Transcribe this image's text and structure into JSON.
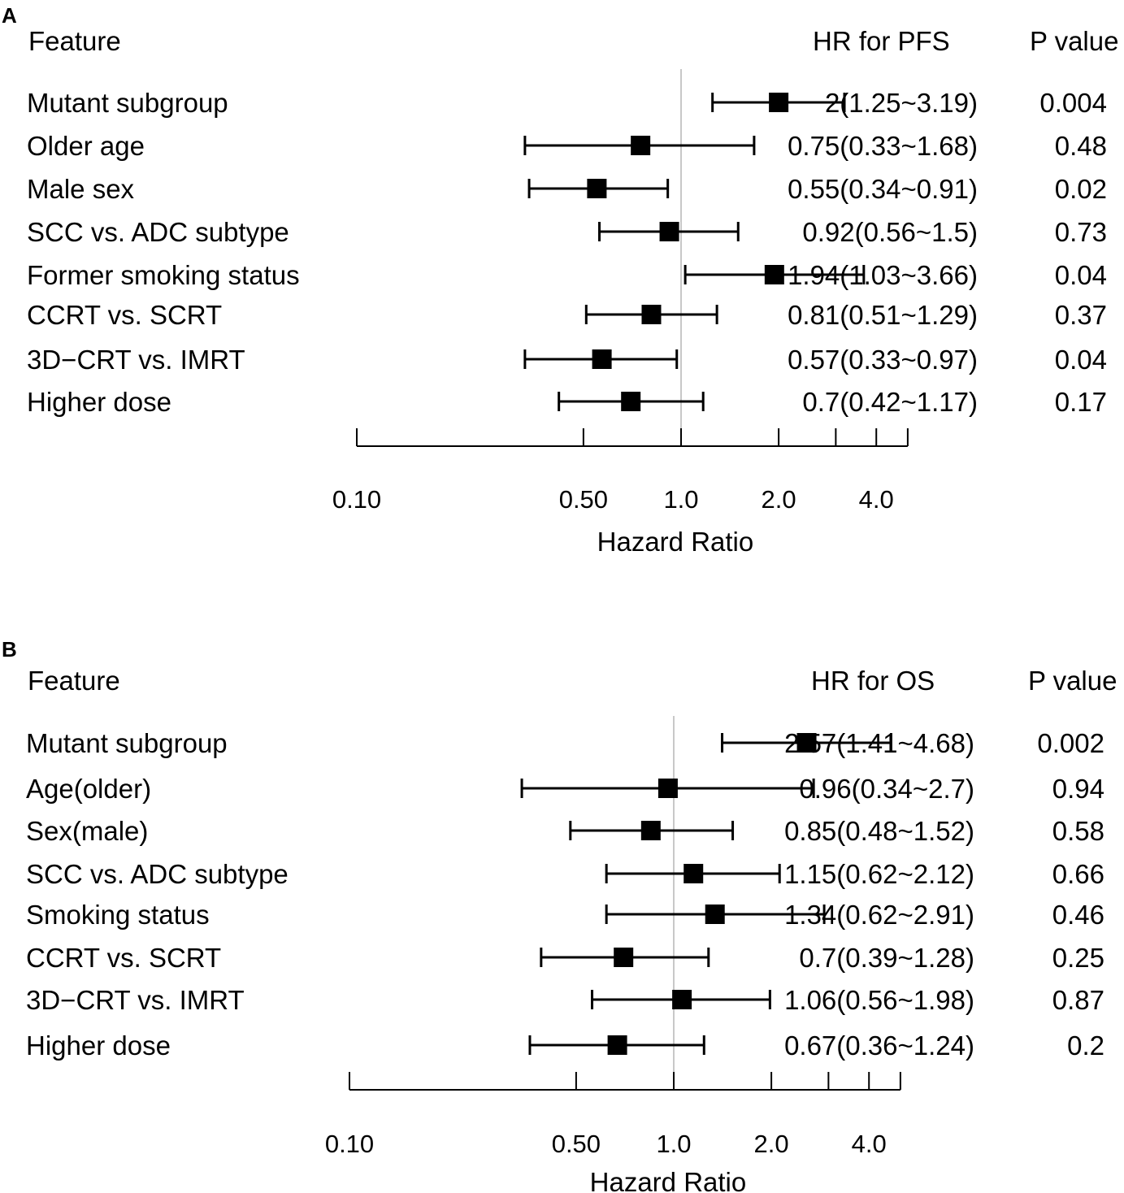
{
  "chart_data": [
    {
      "type": "forest",
      "panel": "A",
      "headers": {
        "feature": "Feature",
        "hr": "HR for PFS",
        "p": "P value"
      },
      "xlabel": "Hazard Ratio",
      "scale": "log",
      "reference": 1.0,
      "xticks": [
        0.1,
        0.5,
        1.0,
        2.0,
        3.0,
        4.0,
        5.0
      ],
      "tick_labels": [
        "0.10",
        "0.50",
        "1.0",
        "2.0",
        "4.0"
      ],
      "rows": [
        {
          "feature": "Mutant subgroup",
          "hr": 2.0,
          "lo": 1.25,
          "hi": 3.19,
          "hr_text": "2(1.25~3.19)",
          "p": "0.004"
        },
        {
          "feature": "Older age",
          "hr": 0.75,
          "lo": 0.33,
          "hi": 1.68,
          "hr_text": "0.75(0.33~1.68)",
          "p": "0.48"
        },
        {
          "feature": "Male sex",
          "hr": 0.55,
          "lo": 0.34,
          "hi": 0.91,
          "hr_text": "0.55(0.34~0.91)",
          "p": "0.02"
        },
        {
          "feature": "SCC vs. ADC subtype",
          "hr": 0.92,
          "lo": 0.56,
          "hi": 1.5,
          "hr_text": "0.92(0.56~1.5)",
          "p": "0.73"
        },
        {
          "feature": "Former smoking status",
          "hr": 1.94,
          "lo": 1.03,
          "hi": 3.66,
          "hr_text": "1.94(1.03~3.66)",
          "p": "0.04"
        },
        {
          "feature": "CCRT vs. SCRT",
          "hr": 0.81,
          "lo": 0.51,
          "hi": 1.29,
          "hr_text": "0.81(0.51~1.29)",
          "p": "0.37"
        },
        {
          "feature": "3D−CRT vs. IMRT",
          "hr": 0.57,
          "lo": 0.33,
          "hi": 0.97,
          "hr_text": "0.57(0.33~0.97)",
          "p": "0.04"
        },
        {
          "feature": "Higher dose",
          "hr": 0.7,
          "lo": 0.42,
          "hi": 1.17,
          "hr_text": "0.7(0.42~1.17)",
          "p": "0.17"
        }
      ]
    },
    {
      "type": "forest",
      "panel": "B",
      "headers": {
        "feature": "Feature",
        "hr": "HR for OS",
        "p": "P value"
      },
      "xlabel": "Hazard Ratio",
      "scale": "log",
      "reference": 1.0,
      "xticks": [
        0.1,
        0.5,
        1.0,
        2.0,
        3.0,
        4.0,
        5.0
      ],
      "tick_labels": [
        "0.10",
        "0.50",
        "1.0",
        "2.0",
        "4.0"
      ],
      "rows": [
        {
          "feature": "Mutant subgroup",
          "hr": 2.57,
          "lo": 1.41,
          "hi": 4.68,
          "hr_text": "2.57(1.41~4.68)",
          "p": "0.002"
        },
        {
          "feature": "Age(older)",
          "hr": 0.96,
          "lo": 0.34,
          "hi": 2.7,
          "hr_text": "0.96(0.34~2.7)",
          "p": "0.94"
        },
        {
          "feature": "Sex(male)",
          "hr": 0.85,
          "lo": 0.48,
          "hi": 1.52,
          "hr_text": "0.85(0.48~1.52)",
          "p": "0.58"
        },
        {
          "feature": "SCC vs. ADC subtype",
          "hr": 1.15,
          "lo": 0.62,
          "hi": 2.12,
          "hr_text": "1.15(0.62~2.12)",
          "p": "0.66"
        },
        {
          "feature": "Smoking status",
          "hr": 1.34,
          "lo": 0.62,
          "hi": 2.91,
          "hr_text": "1.34(0.62~2.91)",
          "p": "0.46"
        },
        {
          "feature": "CCRT vs. SCRT",
          "hr": 0.7,
          "lo": 0.39,
          "hi": 1.28,
          "hr_text": "0.7(0.39~1.28)",
          "p": "0.25"
        },
        {
          "feature": "3D−CRT vs. IMRT",
          "hr": 1.06,
          "lo": 0.56,
          "hi": 1.98,
          "hr_text": "1.06(0.56~1.98)",
          "p": "0.87"
        },
        {
          "feature": "Higher dose",
          "hr": 0.67,
          "lo": 0.36,
          "hi": 1.24,
          "hr_text": "0.67(0.36~1.24)",
          "p": "0.2"
        }
      ]
    }
  ]
}
